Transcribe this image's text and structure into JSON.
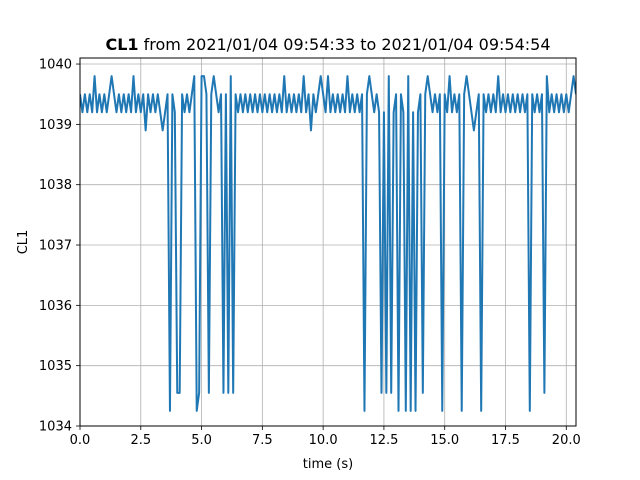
{
  "chart_data": {
    "type": "line",
    "title_bold": "CL1",
    "title_rest": " from 2021/01/04 09:54:33 to 2021/01/04 09:54:54",
    "xlabel": "time (s)",
    "ylabel": "CL1",
    "xlim": [
      0,
      20.4
    ],
    "ylim": [
      1034,
      1040.1
    ],
    "xticks": [
      0.0,
      2.5,
      5.0,
      7.5,
      10.0,
      12.5,
      15.0,
      17.5,
      20.0
    ],
    "xtick_labels": [
      "0.0",
      "2.5",
      "5.0",
      "7.5",
      "10.0",
      "12.5",
      "15.0",
      "17.5",
      "20.0"
    ],
    "yticks": [
      1034,
      1035,
      1036,
      1037,
      1038,
      1039,
      1040
    ],
    "ytick_labels": [
      "1034",
      "1035",
      "1036",
      "1037",
      "1038",
      "1039",
      "1040"
    ],
    "grid": true,
    "color": "#1f77b4",
    "series": [
      {
        "baseline": 1039.5,
        "high": 1039.8,
        "low": 1039.2,
        "high_spikes": [
          0.6,
          1.3,
          2.2,
          2.7,
          3.4,
          4.7,
          5.0,
          5.1,
          5.3,
          5.5,
          6.2,
          8.4,
          9.2,
          9.9,
          10.2,
          11.0,
          11.9,
          12.7,
          13.5,
          14.3,
          15.2,
          15.9,
          17.2,
          19.2,
          20.3
        ],
        "mid_dips": [
          2.75,
          3.4,
          9.5,
          16.2,
          19.1
        ],
        "deep_dips": [
          {
            "t": 3.75,
            "v": 1034.25
          },
          {
            "t": 3.95,
            "v": 1034.55
          },
          {
            "t": 4.1,
            "v": 1034.55
          },
          {
            "t": 4.8,
            "v": 1034.25
          },
          {
            "t": 4.95,
            "v": 1034.55
          },
          {
            "t": 5.3,
            "v": 1034.55
          },
          {
            "t": 5.9,
            "v": 1034.55
          },
          {
            "t": 6.1,
            "v": 1034.55
          },
          {
            "t": 6.3,
            "v": 1034.55
          },
          {
            "t": 11.7,
            "v": 1034.25
          },
          {
            "t": 12.4,
            "v": 1034.55
          },
          {
            "t": 12.6,
            "v": 1034.55
          },
          {
            "t": 12.8,
            "v": 1034.55
          },
          {
            "t": 13.1,
            "v": 1034.25
          },
          {
            "t": 13.4,
            "v": 1034.25
          },
          {
            "t": 13.6,
            "v": 1034.25
          },
          {
            "t": 13.8,
            "v": 1034.25
          },
          {
            "t": 14.1,
            "v": 1034.55
          },
          {
            "t": 14.9,
            "v": 1034.25
          },
          {
            "t": 15.7,
            "v": 1034.25
          },
          {
            "t": 16.5,
            "v": 1034.25
          },
          {
            "t": 18.5,
            "v": 1034.25
          },
          {
            "t": 19.1,
            "v": 1034.55
          }
        ]
      }
    ]
  }
}
